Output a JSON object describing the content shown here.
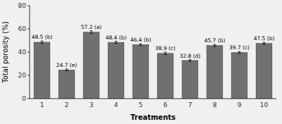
{
  "chart_data": {
    "type": "bar",
    "categories": [
      "1",
      "2",
      "3",
      "4",
      "5",
      "6",
      "7",
      "8",
      "9",
      "10"
    ],
    "values": [
      48.5,
      24.7,
      57.2,
      48.4,
      46.4,
      38.9,
      32.8,
      45.7,
      39.7,
      47.5
    ],
    "errors": [
      1.0,
      0.8,
      1.2,
      0.9,
      0.8,
      1.0,
      0.7,
      0.9,
      0.8,
      0.9
    ],
    "data_labels": true,
    "value_labels": [
      "48.5 (b)",
      "24.7 (e)",
      "57.2 (a)",
      "48.4 (b)",
      "46.4 (b)",
      "38.9 (c)",
      "32.8 (d)",
      "45.7 (b)",
      "39.7 (c)",
      "47.5 (b)"
    ],
    "color": "#707070",
    "xlabel": "Treatments",
    "ylabel": "Total porosity (%)",
    "ylim": [
      0,
      80
    ],
    "yticks": [
      0,
      20,
      40,
      60,
      80
    ],
    "grid": false
  }
}
